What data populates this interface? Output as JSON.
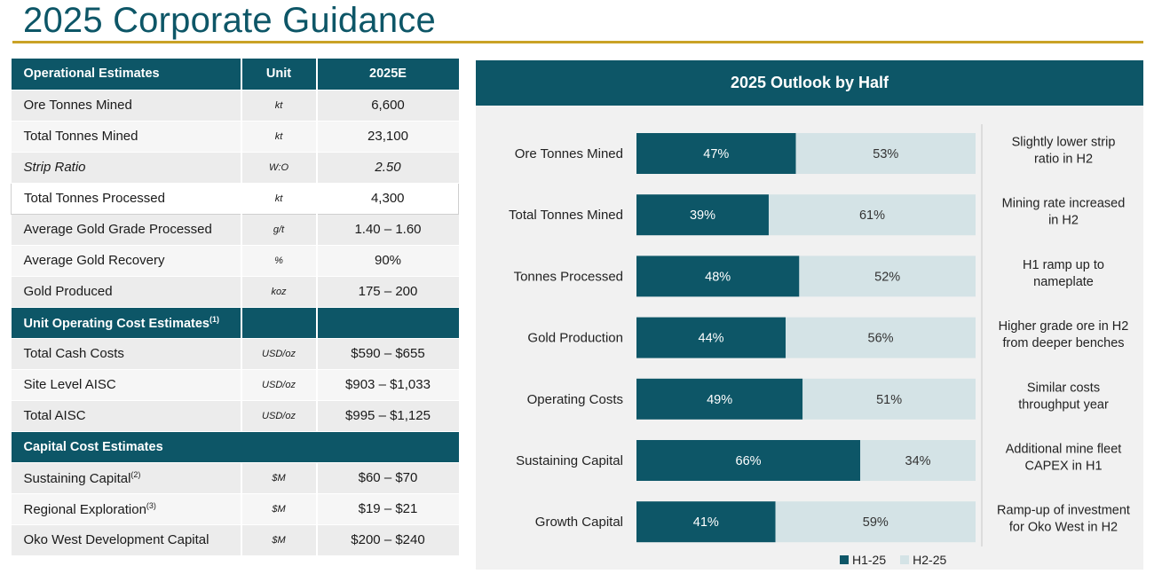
{
  "page_title": "2025 Corporate Guidance",
  "table": {
    "header": {
      "col1": "Operational Estimates",
      "col2": "Unit",
      "col3": "2025E"
    },
    "operational_rows": [
      {
        "label": "Ore Tonnes Mined",
        "unit": "kt",
        "value": "6,600"
      },
      {
        "label": "Total Tonnes Mined",
        "unit": "kt",
        "value": "23,100"
      },
      {
        "label": "Strip Ratio",
        "unit": "W:O",
        "value": "2.50"
      },
      {
        "label": "Total Tonnes Processed",
        "unit": "kt",
        "value": "4,300"
      },
      {
        "label": "Average Gold Grade Processed",
        "unit": "g/t",
        "value": "1.40 – 1.60"
      },
      {
        "label": "Average Gold Recovery",
        "unit": "%",
        "value": "90%"
      },
      {
        "label": "Gold Produced",
        "unit": "koz",
        "value": "175 – 200"
      }
    ],
    "unit_cost_header": {
      "label": "Unit Operating Cost Estimates",
      "note": "(1)"
    },
    "unit_cost_rows": [
      {
        "label": "Total Cash Costs",
        "unit": "USD/oz",
        "value": "$590 – $655"
      },
      {
        "label": "Site Level AISC",
        "unit": "USD/oz",
        "value": "$903 – $1,033"
      },
      {
        "label": "Total AISC",
        "unit": "USD/oz",
        "value": "$995 – $1,125"
      }
    ],
    "capital_header": {
      "label": "Capital Cost Estimates"
    },
    "capital_rows": [
      {
        "label": "Sustaining Capital",
        "note": "(2)",
        "unit": "$M",
        "value": "$60 – $70"
      },
      {
        "label": "Regional Exploration",
        "note": "(3)",
        "unit": "$M",
        "value": "$19 – $21"
      },
      {
        "label": "Oko West Development Capital",
        "note": "",
        "unit": "$M",
        "value": "$200 – $240"
      }
    ]
  },
  "chart_data": {
    "type": "bar",
    "orientation": "horizontal",
    "stacked": true,
    "title": "2025 Outlook by Half",
    "categories": [
      "Ore Tonnes Mined",
      "Total Tonnes Mined",
      "Tonnes Processed",
      "Gold Production",
      "Operating Costs",
      "Sustaining Capital",
      "Growth Capital"
    ],
    "series": [
      {
        "name": "H1-25",
        "values": [
          47,
          39,
          48,
          44,
          49,
          66,
          41
        ],
        "color": "#0d5667",
        "label_color": "#ffffff"
      },
      {
        "name": "H2-25",
        "values": [
          53,
          61,
          52,
          56,
          51,
          34,
          59
        ],
        "color": "#d4e3e6",
        "label_color": "#333333"
      }
    ],
    "value_suffix": "%",
    "xlim": [
      0,
      100
    ],
    "comments": [
      [
        "Slightly lower strip",
        "ratio in H2"
      ],
      [
        "Mining rate increased",
        "in H2"
      ],
      [
        "H1 ramp up to",
        "nameplate"
      ],
      [
        "Higher grade ore in H2",
        "from deeper benches"
      ],
      [
        "Similar costs",
        "throughput year"
      ],
      [
        "Additional mine fleet",
        "CAPEX in H1"
      ],
      [
        "Ramp-up of investment",
        "for Oko West in H2"
      ]
    ],
    "legend": "bottom",
    "grid": false
  }
}
